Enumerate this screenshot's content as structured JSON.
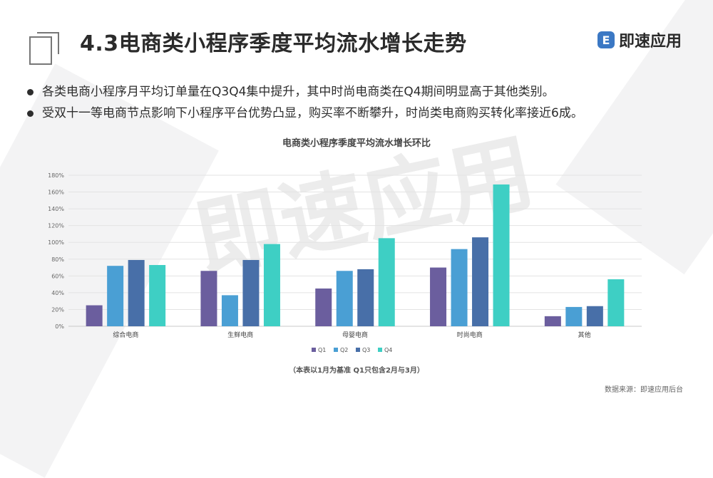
{
  "header": {
    "title": "4.3电商类小程序季度平均流水增长走势",
    "logo_mark": "E",
    "logo_text": "即速应用"
  },
  "bullets": [
    "各类电商小程序月平均订单量在Q3Q4集中提升，其中时尚电商类在Q4期间明显高于其他类别。",
    "受双十一等电商节点影响下小程序平台优势凸显，购买率不断攀升，时尚类电商购买转化率接近6成。"
  ],
  "watermark": "即速应用",
  "chart_data": {
    "type": "bar",
    "title": "电商类小程序季度平均流水增长环比",
    "categories": [
      "综合电商",
      "生鲜电商",
      "母婴电商",
      "时尚电商",
      "其他"
    ],
    "series": [
      {
        "name": "Q1",
        "color": "#6b5e9e",
        "values": [
          25,
          66,
          45,
          70,
          12
        ]
      },
      {
        "name": "Q2",
        "color": "#4a9fd4",
        "values": [
          72,
          37,
          66,
          92,
          23
        ]
      },
      {
        "name": "Q3",
        "color": "#486fa8",
        "values": [
          79,
          79,
          68,
          106,
          24
        ]
      },
      {
        "name": "Q4",
        "color": "#3ecfc4",
        "values": [
          73,
          98,
          105,
          169,
          56
        ]
      }
    ],
    "y_ticks": [
      "0%",
      "20%",
      "40%",
      "60%",
      "80%",
      "100%",
      "120%",
      "140%",
      "160%",
      "180%"
    ],
    "ylim": [
      0,
      180
    ],
    "grid": true,
    "legend": "bottom"
  },
  "footer": {
    "note": "（本表以1月为基准    Q1只包含2月与3月）",
    "source": "数据来源：即速应用后台"
  }
}
